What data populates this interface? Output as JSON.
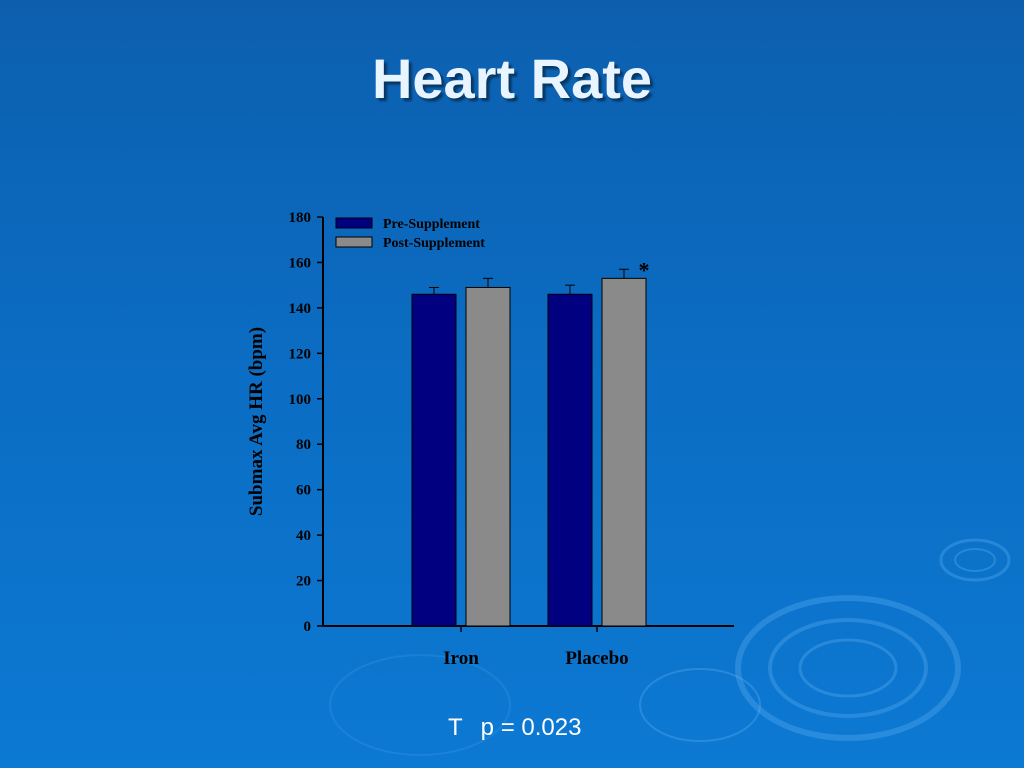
{
  "slide": {
    "title": "Heart Rate",
    "footnote_symbol": "T",
    "footnote_text": "p = 0.023"
  },
  "colors": {
    "pre": "#000080",
    "post": "#8a8a8a"
  },
  "chart_data": {
    "type": "bar",
    "title": "",
    "xlabel": "",
    "ylabel": "Submax Avg HR (bpm)",
    "ylim": [
      0,
      180
    ],
    "yticks": [
      0,
      20,
      40,
      60,
      80,
      100,
      120,
      140,
      160,
      180
    ],
    "categories": [
      "Iron",
      "Placebo"
    ],
    "legend_position": "top-left",
    "series": [
      {
        "name": "Pre-Supplement",
        "values": [
          146,
          146
        ],
        "errors": [
          3,
          4
        ]
      },
      {
        "name": "Post-Supplement",
        "values": [
          149,
          153
        ],
        "errors": [
          4,
          4
        ]
      }
    ],
    "annotations": [
      {
        "category": "Placebo",
        "series": "Post-Supplement",
        "text": "*"
      }
    ]
  }
}
